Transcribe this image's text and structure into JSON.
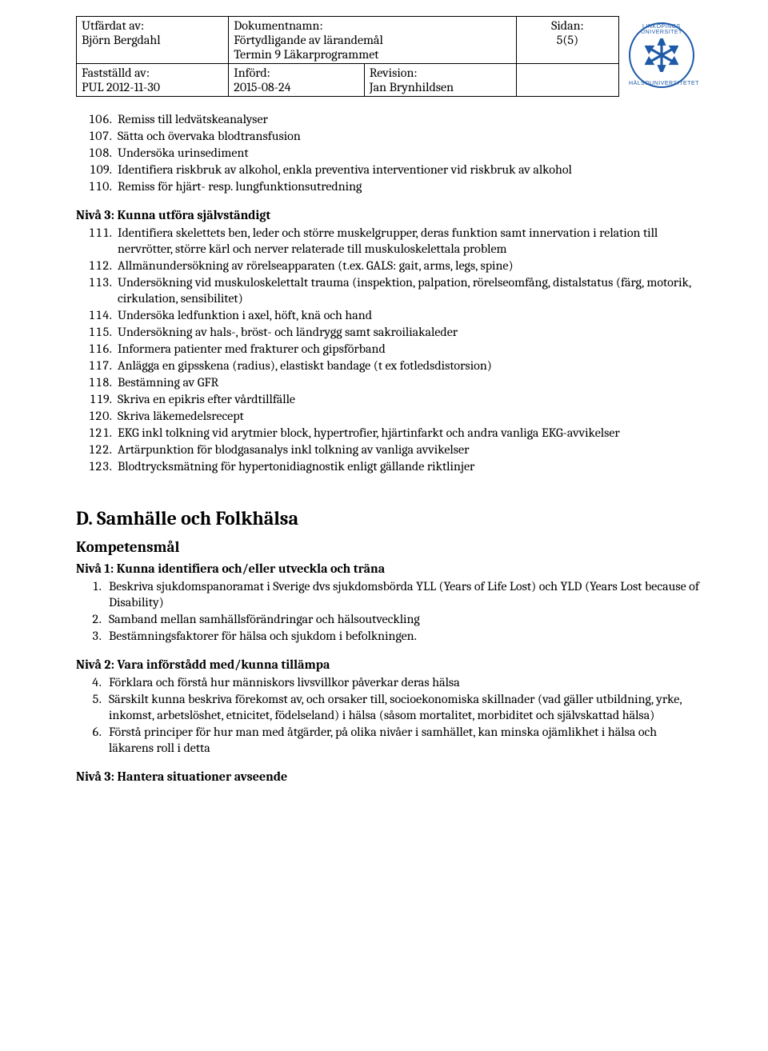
{
  "header": {
    "issuedByLabel": "Utfärdat av:",
    "issuedBy": "Björn Bergdahl",
    "docNameLabel": "Dokumentnamn:",
    "docName1": "Förtydligande av lärandemål",
    "docName2": "Termin 9 Läkarprogrammet",
    "pageLabel": "Sidan:",
    "pageNum": "5(5)",
    "establishedLabel": "Fastställd av:",
    "established": "PUL 2012-11-30",
    "enteredLabel": "Införd:",
    "entered": "2015-08-24",
    "revisionLabel": "Revision:",
    "revision": "Jan Brynhildsen",
    "logoTop": "LINKÖPINGS UNIVERSITET",
    "logoBot": "HÄLSOUNIVERSITETET"
  },
  "listA": {
    "start": 106,
    "items": [
      "Remiss till ledvätskeanalyser",
      "Sätta och övervaka blodtransfusion",
      "Undersöka urinsediment",
      "Identifiera riskbruk av alkohol, enkla preventiva interventioner vid riskbruk av alkohol",
      "Remiss för hjärt- resp. lungfunktionsutredning"
    ]
  },
  "level3Label": "Nivå 3: Kunna utföra självständigt",
  "listB": {
    "start": 111,
    "items": [
      "Identifiera skelettets ben, leder och större muskelgrupper, deras funktion samt innervation i relation till nervrötter, större kärl och nerver relaterade till muskuloskelettala problem",
      "Allmänundersökning av rörelseapparaten (t.ex. GALS: gait, arms, legs, spine)",
      "Undersökning vid muskuloskelettalt trauma (inspektion, palpation, rörelseomfång, distalstatus (färg, motorik, cirkulation, sensibilitet)",
      "Undersöka ledfunktion i axel, höft, knä och hand",
      "Undersökning av hals-, bröst- och ländrygg samt sakroiliakaleder",
      "Informera patienter med frakturer och gipsförband",
      "Anlägga en gipsskena (radius), elastiskt bandage (t ex fotledsdistorsion)",
      "Bestämning av GFR",
      "Skriva en epikris efter vårdtillfälle",
      "Skriva läkemedelsrecept",
      "EKG inkl tolkning vid arytmier block, hypertrofier, hjärtinfarkt och andra vanliga EKG-avvikelser",
      "Artärpunktion för blodgasanalys inkl tolkning av vanliga avvikelser",
      "Blodtrycksmätning för hypertonidiagnostik enligt gällande riktlinjer"
    ]
  },
  "sectionD": {
    "title": "D. Samhälle och Folkhälsa",
    "kompetens": "Kompetensmål",
    "niva1": "Nivå 1: Kunna identifiera och/eller utveckla och träna",
    "niva1Items": [
      "Beskriva sjukdomspanoramat i Sverige dvs sjukdomsbörda YLL (Years of Life Lost) och YLD (Years Lost because of Disability)",
      "Samband mellan samhällsförändringar och hälsoutveckling",
      "Bestämningsfaktorer för hälsa och sjukdom i befolkningen."
    ],
    "niva2": "Nivå 2: Vara införstådd med/kunna tillämpa",
    "niva2Start": 4,
    "niva2Items": [
      "Förklara och förstå hur människors livsvillkor påverkar deras hälsa",
      "Särskilt kunna beskriva förekomst av, och orsaker till, socioekonomiska skillnader (vad gäller utbildning, yrke, inkomst, arbetslöshet, etnicitet, födelseland) i hälsa (såsom mortalitet, morbiditet och självskattad hälsa)",
      "Förstå principer för hur man med åtgärder, på olika nivåer i samhället, kan minska ojämlikhet i hälsa och läkarens roll i detta"
    ],
    "niva3": "Nivå 3: Hantera situationer avseende"
  },
  "colors": {
    "text": "#000000",
    "logo": "#1e5aa8"
  }
}
